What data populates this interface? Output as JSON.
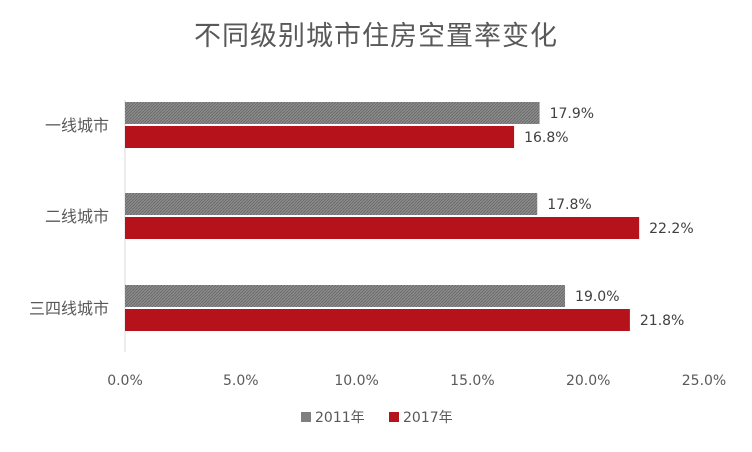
{
  "chart_data": {
    "type": "bar",
    "orientation": "horizontal",
    "title": "不同级别城市住房空置率变化",
    "categories": [
      "一线城市",
      "二线城市",
      "三四线城市"
    ],
    "series": [
      {
        "name": "2011年",
        "values": [
          17.9,
          17.8,
          19.0
        ],
        "labels": [
          "17.9%",
          "17.8%",
          "19.0%"
        ],
        "color": "#7f7f7f"
      },
      {
        "name": "2017年",
        "values": [
          16.8,
          22.2,
          21.8
        ],
        "labels": [
          "16.8%",
          "22.2%",
          "21.8%"
        ],
        "color": "#b5121b"
      }
    ],
    "xlim": [
      0,
      25
    ],
    "xticks": [
      "0.0%",
      "5.0%",
      "10.0%",
      "15.0%",
      "20.0%",
      "25.0%"
    ],
    "grid": false,
    "legend": "bottom"
  }
}
